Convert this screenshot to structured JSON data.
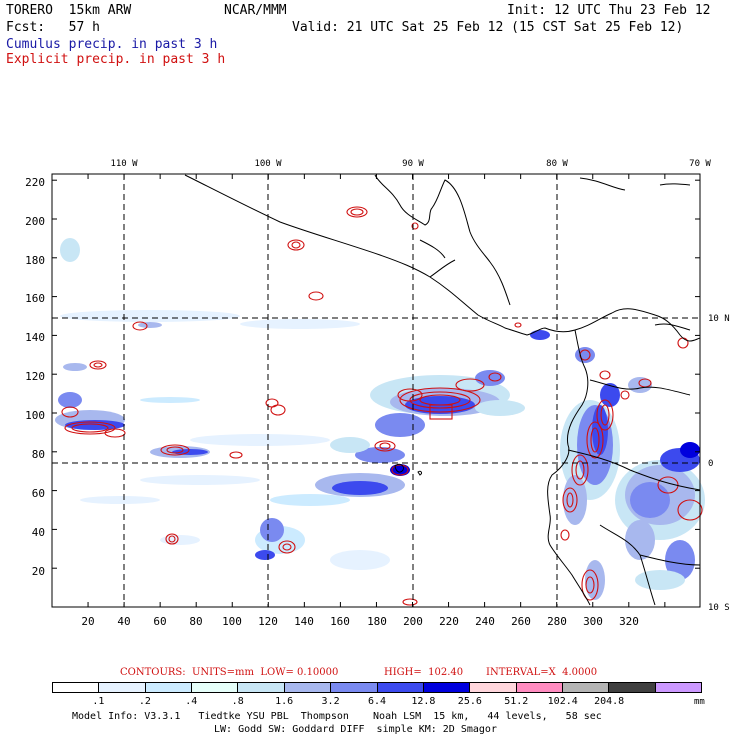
{
  "header": {
    "model": "TORERO  15km ARW",
    "org": "NCAR/MMM",
    "init": "Init: 12 UTC Thu 23 Feb 12",
    "fcst": "Fcst:   57 h",
    "valid": "Valid: 21 UTC Sat 25 Feb 12 (15 CST Sat 25 Feb 12)",
    "field1": "Cumulus precip. in past 3 h",
    "field2": "Explicit precip. in past 3 h"
  },
  "colors": {
    "field1_text": "#1a1aa6",
    "field2_text": "#d01010",
    "contour": "#d01010",
    "coast": "#000000"
  },
  "map": {
    "lon_labels": [
      "110 W",
      "100 W",
      "90 W",
      "80 W",
      "70 W"
    ],
    "lat_labels": [
      "10 N",
      "0",
      "10 S"
    ],
    "x_ticks": [
      "20",
      "40",
      "60",
      "80",
      "100",
      "120",
      "140",
      "160",
      "180",
      "200",
      "220",
      "240",
      "260",
      "280",
      "300",
      "320"
    ],
    "y_ticks": [
      "220",
      "200",
      "180",
      "160",
      "140",
      "120",
      "100",
      "80",
      "60",
      "40",
      "20"
    ]
  },
  "contours": {
    "title": "CONTOURS:  UNITS=mm  LOW= 0.10000",
    "high": "HIGH=  102.40",
    "interval": "INTERVAL=X  4.0000"
  },
  "colorbar": {
    "colors": [
      "#ffffff",
      "#e6f2ff",
      "#ccebff",
      "#e6fffa",
      "#c8e6f5",
      "#a8b8ee",
      "#7a8af0",
      "#3c4aee",
      "#0000dd",
      "#ffd6dc",
      "#ff8cc0",
      "#b4b4b4",
      "#404040",
      "#cc99ff"
    ],
    "labels": [
      ".1",
      ".2",
      ".4",
      ".8",
      "1.6",
      "3.2",
      "6.4",
      "12.8",
      "25.6",
      "51.2",
      "102.4",
      "204.8"
    ],
    "unit": "mm"
  },
  "footer": {
    "line1": "Model Info: V3.3.1   Tiedtke YSU PBL  Thompson    Noah LSM  15 km,   44 levels,   58 sec",
    "line2": "LW: Godd SW: Goddard DIFF  simple KM: 2D Smagor"
  }
}
